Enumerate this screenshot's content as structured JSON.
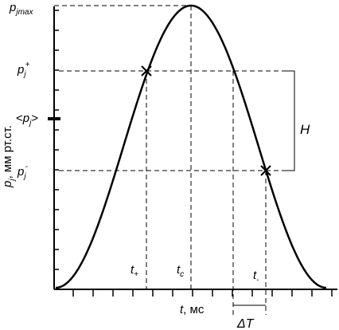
{
  "labels": {
    "p_max_main": "p",
    "p_max_sub": "jmax",
    "p_plus_main": "p",
    "p_plus_sub": "j",
    "p_plus_sup": "+",
    "p_mean_open": "<",
    "p_mean_main": "p",
    "p_mean_sub": "j",
    "p_mean_close": ">",
    "p_minus_main": "p",
    "p_minus_sub": "j",
    "p_minus_sup": "-",
    "y_axis_main": "p",
    "y_axis_sub": "j",
    "y_axis_unit": ", мм рт.ст.",
    "t_plus_main": "t",
    "t_plus_sub": "+",
    "t_c_main": "t",
    "t_c_sub": "c",
    "t_minus_main": "t",
    "t_minus_sub": "-",
    "x_axis_main": "t",
    "x_axis_unit": ", мс",
    "h_label": "H",
    "delta_t": "ΔT"
  },
  "colors": {
    "ink": "#000000",
    "background": "#ffffff"
  }
}
